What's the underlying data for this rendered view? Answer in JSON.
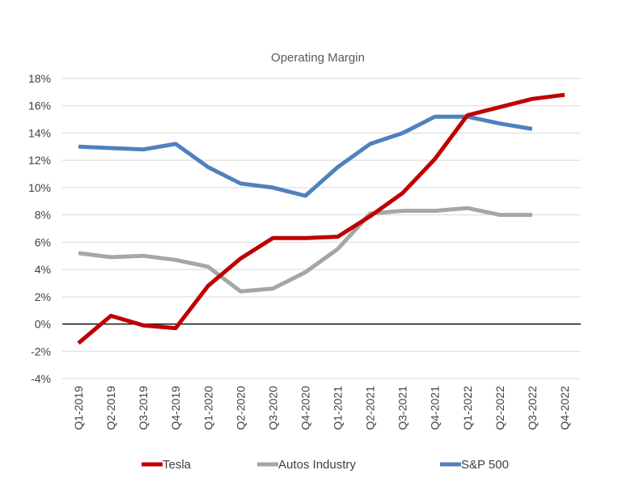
{
  "chart_data": {
    "type": "line",
    "title": "Operating Margin",
    "categories": [
      "Q1-2019",
      "Q2-2019",
      "Q3-2019",
      "Q4-2019",
      "Q1-2020",
      "Q2-2020",
      "Q3-2020",
      "Q4-2020",
      "Q1-2021",
      "Q2-2021",
      "Q3-2021",
      "Q4-2021",
      "Q1-2022",
      "Q2-2022",
      "Q3-2022",
      "Q4-2022"
    ],
    "y_ticks": [
      -4,
      -2,
      0,
      2,
      4,
      6,
      8,
      10,
      12,
      14,
      16,
      18
    ],
    "y_tick_labels": [
      "-4%",
      "-2%",
      "0%",
      "2%",
      "4%",
      "6%",
      "8%",
      "10%",
      "12%",
      "14%",
      "16%",
      "18%"
    ],
    "ylim": [
      -4,
      18
    ],
    "grid": true,
    "legend_position": "bottom",
    "series": [
      {
        "name": "Tesla",
        "color": "#c00000",
        "values": [
          -1.4,
          0.6,
          -0.1,
          -0.3,
          2.8,
          4.8,
          6.3,
          6.3,
          6.4,
          7.9,
          9.6,
          12.1,
          15.3,
          15.9,
          16.5,
          16.8
        ]
      },
      {
        "name": "Autos Industry",
        "color": "#a6a6a6",
        "values": [
          5.2,
          4.9,
          5.0,
          4.7,
          4.2,
          2.4,
          2.6,
          3.8,
          5.5,
          8.1,
          8.3,
          8.3,
          8.5,
          8.0,
          8.0,
          null
        ]
      },
      {
        "name": "S&P 500",
        "color": "#4f81bd",
        "values": [
          13.0,
          12.9,
          12.8,
          13.2,
          11.5,
          10.3,
          10.0,
          9.4,
          11.5,
          13.2,
          14.0,
          15.2,
          15.2,
          14.7,
          14.3,
          null
        ]
      }
    ]
  }
}
